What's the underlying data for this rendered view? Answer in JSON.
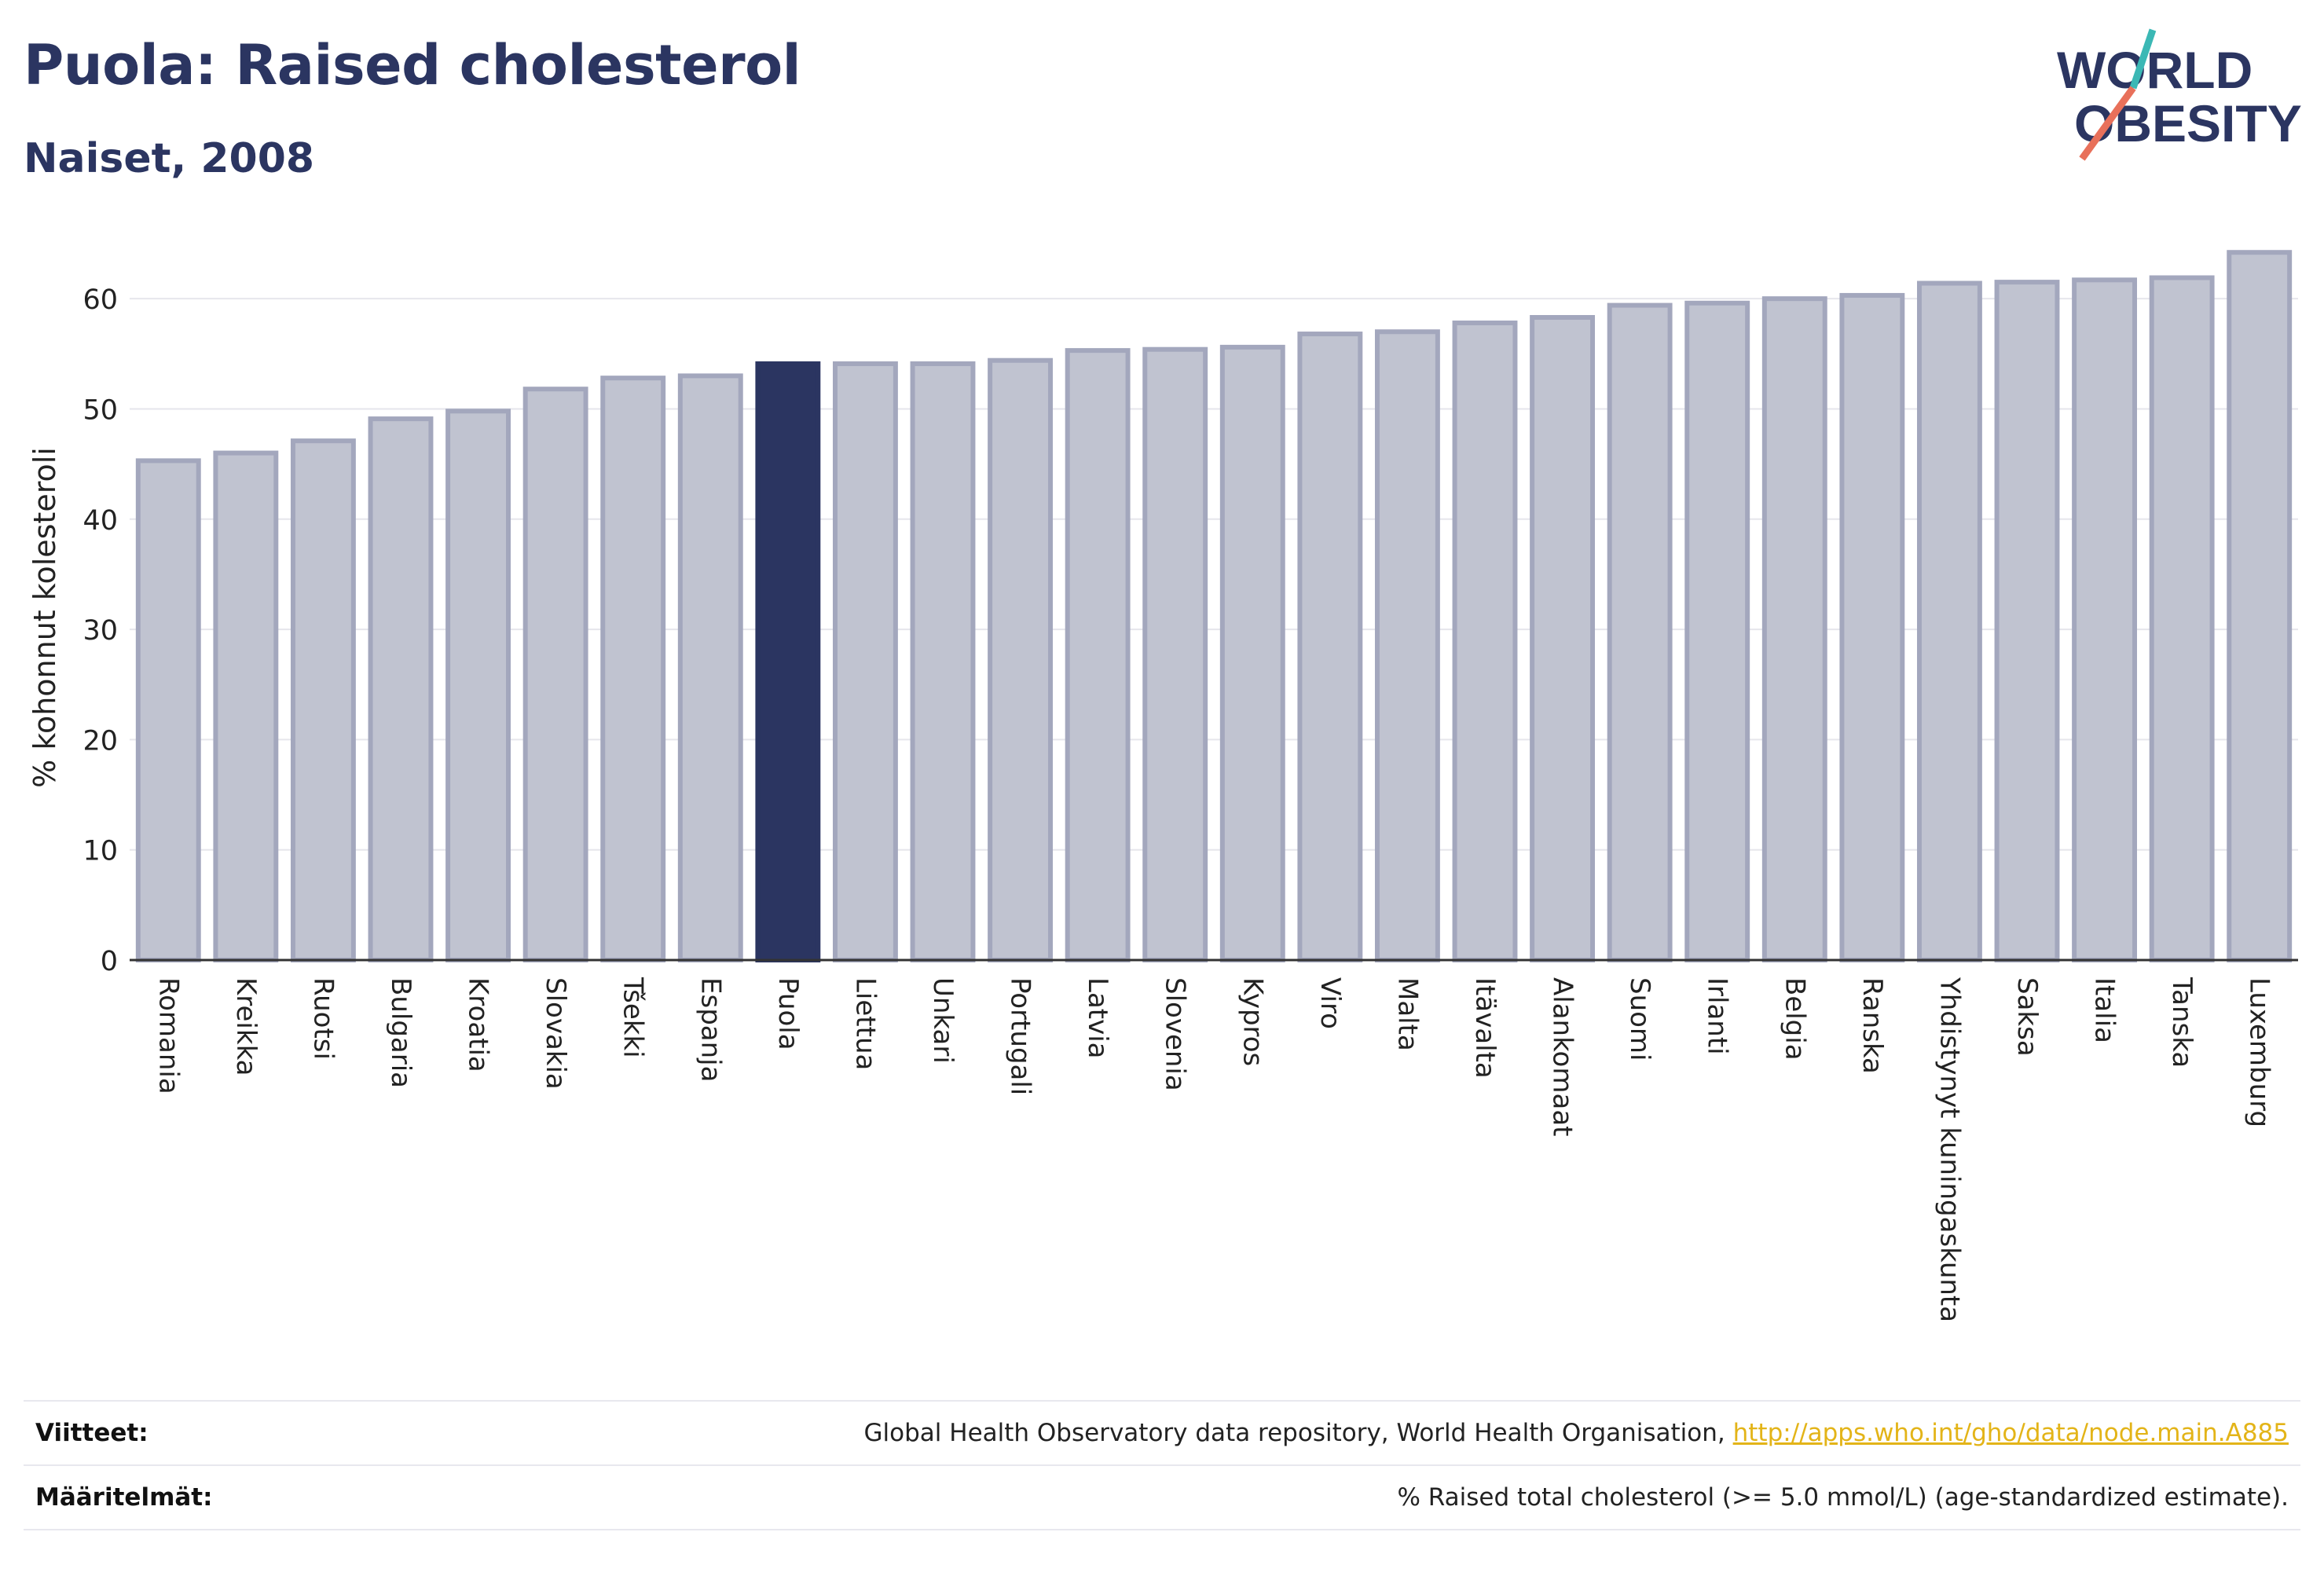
{
  "header": {
    "title": "Puola: Raised cholesterol",
    "subtitle": "Naiset, 2008"
  },
  "logo": {
    "line1": "WORLD",
    "line2": "OBESITY",
    "colors": {
      "text": "#2b3561",
      "slash_top": "#3bb8b5",
      "slash_bottom": "#e8705a"
    }
  },
  "chart_data": {
    "type": "bar",
    "ylabel": "% kohonnut kolesteroli",
    "xlabel": "",
    "ylim": [
      0,
      65
    ],
    "yticks": [
      0,
      10,
      20,
      30,
      40,
      50,
      60
    ],
    "grid": true,
    "highlight": "Puola",
    "colors": {
      "bar": "#c0c3d0",
      "bar_edge": "#a3a7bd",
      "highlight": "#2b3561"
    },
    "categories": [
      "Romania",
      "Kreikka",
      "Ruotsi",
      "Bulgaria",
      "Kroatia",
      "Slovakia",
      "Tšekki",
      "Espanja",
      "Puola",
      "Liettua",
      "Unkari",
      "Portugali",
      "Latvia",
      "Slovenia",
      "Kypros",
      "Viro",
      "Malta",
      "Itävalta",
      "Alankomaat",
      "Suomi",
      "Irlanti",
      "Belgia",
      "Ranska",
      "Yhdistynyt kuningaskunta",
      "Saksa",
      "Italia",
      "Tanska",
      "Luxemburg"
    ],
    "values": [
      45.3,
      46.0,
      47.1,
      49.1,
      49.8,
      51.8,
      52.8,
      53.0,
      54.1,
      54.1,
      54.1,
      54.4,
      55.3,
      55.4,
      55.6,
      56.8,
      57.0,
      57.8,
      58.3,
      59.4,
      59.6,
      60.0,
      60.3,
      61.4,
      61.5,
      61.7,
      61.9,
      64.2
    ]
  },
  "footer": {
    "refs_label": "Viitteet:",
    "refs_text": "Global Health Observatory data repository, World Health Organisation,",
    "refs_link": "http://apps.who.int/gho/data/node.main.A885",
    "defs_label": "Määritelmät:",
    "defs_text": "% Raised total cholesterol (>= 5.0 mmol/L) (age-standardized estimate)."
  }
}
